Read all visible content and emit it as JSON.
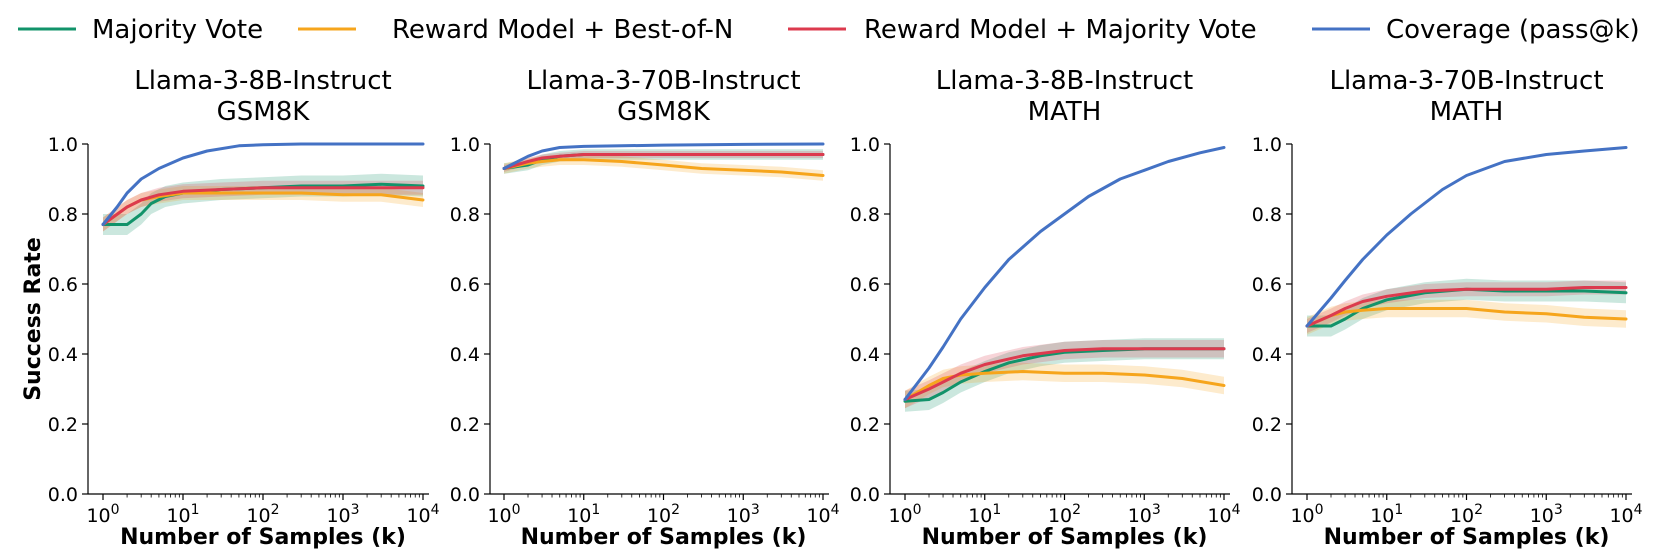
{
  "legend": [
    {
      "name": "Majority Vote",
      "color": "#12936a"
    },
    {
      "name": "Reward Model + Best-of-N",
      "color": "#f6a51c"
    },
    {
      "name": "Reward Model + Majority Vote",
      "color": "#dc3a4e"
    },
    {
      "name": "Coverage (pass@k)",
      "color": "#4472c4"
    }
  ],
  "chart_data": [
    {
      "type": "line",
      "title": [
        "Llama-3-8B-Instruct",
        "GSM8K"
      ],
      "xlabel": "Number of Samples (k)",
      "ylabel": "Success Rate",
      "xscale": "log",
      "xlim": [
        1,
        10000
      ],
      "ylim": [
        0,
        1
      ],
      "xticks": [
        {
          "v": 1,
          "b": "10",
          "e": "0"
        },
        {
          "v": 10,
          "b": "10",
          "e": "1"
        },
        {
          "v": 100,
          "b": "10",
          "e": "2"
        },
        {
          "v": 1000,
          "b": "10",
          "e": "3"
        },
        {
          "v": 10000,
          "b": "10",
          "e": "4"
        }
      ],
      "yticks": [
        "0.0",
        "0.2",
        "0.4",
        "0.6",
        "0.8",
        "1.0"
      ],
      "series": [
        {
          "name": "Majority Vote",
          "x": [
            1,
            1.5,
            2,
            3,
            4,
            6,
            10,
            30,
            100,
            300,
            1000,
            3000,
            10000
          ],
          "y": [
            0.77,
            0.77,
            0.77,
            0.8,
            0.83,
            0.85,
            0.86,
            0.87,
            0.875,
            0.88,
            0.88,
            0.885,
            0.88
          ],
          "band": 0.03
        },
        {
          "name": "Reward Model + Best-of-N",
          "x": [
            1,
            2,
            3,
            5,
            10,
            30,
            100,
            300,
            1000,
            3000,
            10000
          ],
          "y": [
            0.77,
            0.82,
            0.84,
            0.85,
            0.86,
            0.86,
            0.86,
            0.86,
            0.855,
            0.855,
            0.84
          ],
          "band": 0.02
        },
        {
          "name": "Reward Model + Majority Vote",
          "x": [
            1,
            2,
            3,
            5,
            10,
            30,
            100,
            300,
            1000,
            3000,
            10000
          ],
          "y": [
            0.77,
            0.82,
            0.84,
            0.855,
            0.865,
            0.87,
            0.875,
            0.875,
            0.875,
            0.875,
            0.875
          ],
          "band": 0.02
        },
        {
          "name": "Coverage (pass@k)",
          "x": [
            1,
            1.5,
            2,
            3,
            5,
            10,
            20,
            50,
            100,
            300,
            1000,
            10000
          ],
          "y": [
            0.77,
            0.82,
            0.86,
            0.9,
            0.93,
            0.96,
            0.98,
            0.995,
            0.998,
            1.0,
            1.0,
            1.0
          ],
          "band": 0
        }
      ]
    },
    {
      "type": "line",
      "title": [
        "Llama-3-70B-Instruct",
        "GSM8K"
      ],
      "xlabel": "Number of Samples (k)",
      "ylabel": "",
      "xscale": "log",
      "xlim": [
        1,
        10000
      ],
      "ylim": [
        0,
        1
      ],
      "xticks": [
        {
          "v": 1,
          "b": "10",
          "e": "0"
        },
        {
          "v": 10,
          "b": "10",
          "e": "1"
        },
        {
          "v": 100,
          "b": "10",
          "e": "2"
        },
        {
          "v": 1000,
          "b": "10",
          "e": "3"
        },
        {
          "v": 10000,
          "b": "10",
          "e": "4"
        }
      ],
      "yticks": [
        "0.0",
        "0.2",
        "0.4",
        "0.6",
        "0.8",
        "1.0"
      ],
      "series": [
        {
          "name": "Majority Vote",
          "x": [
            1,
            2,
            3,
            5,
            10,
            30,
            100,
            1000,
            10000
          ],
          "y": [
            0.93,
            0.94,
            0.955,
            0.965,
            0.97,
            0.97,
            0.97,
            0.97,
            0.97
          ],
          "band": 0.015
        },
        {
          "name": "Reward Model + Best-of-N",
          "x": [
            1,
            2,
            3,
            5,
            10,
            30,
            100,
            300,
            1000,
            3000,
            10000
          ],
          "y": [
            0.93,
            0.945,
            0.95,
            0.955,
            0.955,
            0.95,
            0.94,
            0.93,
            0.925,
            0.92,
            0.91
          ],
          "band": 0.015
        },
        {
          "name": "Reward Model + Majority Vote",
          "x": [
            1,
            2,
            3,
            5,
            10,
            30,
            100,
            1000,
            10000
          ],
          "y": [
            0.93,
            0.95,
            0.96,
            0.965,
            0.97,
            0.97,
            0.97,
            0.97,
            0.97
          ],
          "band": 0.01
        },
        {
          "name": "Coverage (pass@k)",
          "x": [
            1,
            2,
            3,
            5,
            10,
            30,
            100,
            1000,
            10000
          ],
          "y": [
            0.93,
            0.965,
            0.98,
            0.99,
            0.993,
            0.995,
            0.997,
            0.999,
            1.0
          ],
          "band": 0
        }
      ]
    },
    {
      "type": "line",
      "title": [
        "Llama-3-8B-Instruct",
        "MATH"
      ],
      "xlabel": "Number of Samples (k)",
      "ylabel": "",
      "xscale": "log",
      "xlim": [
        1,
        10000
      ],
      "ylim": [
        0,
        1
      ],
      "xticks": [
        {
          "v": 1,
          "b": "10",
          "e": "0"
        },
        {
          "v": 10,
          "b": "10",
          "e": "1"
        },
        {
          "v": 100,
          "b": "10",
          "e": "2"
        },
        {
          "v": 1000,
          "b": "10",
          "e": "3"
        },
        {
          "v": 10000,
          "b": "10",
          "e": "4"
        }
      ],
      "yticks": [
        "0.0",
        "0.2",
        "0.4",
        "0.6",
        "0.8",
        "1.0"
      ],
      "series": [
        {
          "name": "Majority Vote",
          "x": [
            1,
            2,
            3,
            5,
            10,
            20,
            50,
            100,
            300,
            1000,
            3000,
            10000
          ],
          "y": [
            0.265,
            0.27,
            0.29,
            0.32,
            0.35,
            0.375,
            0.395,
            0.405,
            0.41,
            0.415,
            0.415,
            0.415
          ],
          "band": 0.03
        },
        {
          "name": "Reward Model + Best-of-N",
          "x": [
            1,
            2,
            3,
            5,
            10,
            30,
            100,
            300,
            1000,
            3000,
            10000
          ],
          "y": [
            0.27,
            0.31,
            0.33,
            0.34,
            0.345,
            0.35,
            0.345,
            0.345,
            0.34,
            0.33,
            0.31
          ],
          "band": 0.025
        },
        {
          "name": "Reward Model + Majority Vote",
          "x": [
            1,
            2,
            3,
            5,
            10,
            30,
            100,
            300,
            1000,
            3000,
            10000
          ],
          "y": [
            0.27,
            0.3,
            0.32,
            0.345,
            0.37,
            0.395,
            0.41,
            0.415,
            0.415,
            0.415,
            0.415
          ],
          "band": 0.025
        },
        {
          "name": "Coverage (pass@k)",
          "x": [
            1,
            2,
            3,
            5,
            10,
            20,
            50,
            100,
            200,
            500,
            1000,
            2000,
            5000,
            10000
          ],
          "y": [
            0.27,
            0.36,
            0.42,
            0.5,
            0.59,
            0.67,
            0.75,
            0.8,
            0.85,
            0.9,
            0.925,
            0.95,
            0.975,
            0.99
          ],
          "band": 0
        }
      ]
    },
    {
      "type": "line",
      "title": [
        "Llama-3-70B-Instruct",
        "MATH"
      ],
      "xlabel": "Number of Samples (k)",
      "ylabel": "",
      "xscale": "log",
      "xlim": [
        1,
        10000
      ],
      "ylim": [
        0,
        1
      ],
      "xticks": [
        {
          "v": 1,
          "b": "10",
          "e": "0"
        },
        {
          "v": 10,
          "b": "10",
          "e": "1"
        },
        {
          "v": 100,
          "b": "10",
          "e": "2"
        },
        {
          "v": 1000,
          "b": "10",
          "e": "3"
        },
        {
          "v": 10000,
          "b": "10",
          "e": "4"
        }
      ],
      "yticks": [
        "0.0",
        "0.2",
        "0.4",
        "0.6",
        "0.8",
        "1.0"
      ],
      "series": [
        {
          "name": "Majority Vote",
          "x": [
            1,
            1.5,
            2,
            3,
            5,
            10,
            30,
            100,
            300,
            1000,
            3000,
            10000
          ],
          "y": [
            0.48,
            0.48,
            0.48,
            0.5,
            0.53,
            0.555,
            0.575,
            0.585,
            0.58,
            0.58,
            0.58,
            0.575
          ],
          "band": 0.03
        },
        {
          "name": "Reward Model + Best-of-N",
          "x": [
            1,
            2,
            3,
            5,
            10,
            30,
            100,
            300,
            1000,
            3000,
            10000
          ],
          "y": [
            0.48,
            0.51,
            0.52,
            0.525,
            0.53,
            0.53,
            0.53,
            0.52,
            0.515,
            0.505,
            0.5
          ],
          "band": 0.025
        },
        {
          "name": "Reward Model + Majority Vote",
          "x": [
            1,
            2,
            3,
            5,
            10,
            30,
            100,
            300,
            1000,
            3000,
            10000
          ],
          "y": [
            0.48,
            0.51,
            0.53,
            0.55,
            0.565,
            0.58,
            0.585,
            0.585,
            0.585,
            0.59,
            0.59
          ],
          "band": 0.02
        },
        {
          "name": "Coverage (pass@k)",
          "x": [
            1,
            2,
            3,
            5,
            10,
            20,
            50,
            100,
            300,
            1000,
            3000,
            10000
          ],
          "y": [
            0.48,
            0.56,
            0.61,
            0.67,
            0.74,
            0.8,
            0.87,
            0.91,
            0.95,
            0.97,
            0.98,
            0.99
          ],
          "band": 0
        }
      ]
    }
  ]
}
